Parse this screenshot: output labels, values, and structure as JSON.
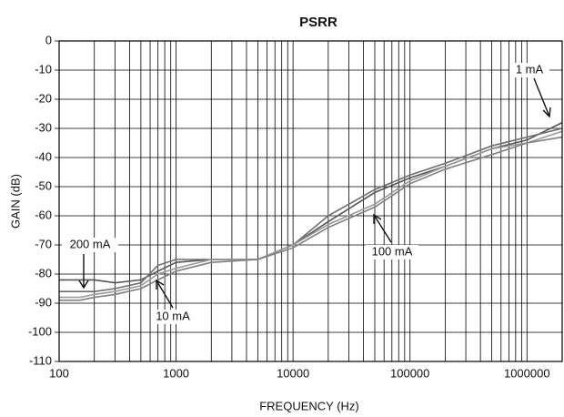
{
  "chart_data": {
    "type": "line",
    "title": "PSRR",
    "x_label": "FREQUENCY (Hz)",
    "y_label": "GAIN (dB)",
    "xscale": "log",
    "grid": true,
    "xlim": [
      100,
      2000000
    ],
    "ylim": [
      -110,
      0
    ],
    "xticks": [
      100,
      1000,
      10000,
      100000,
      1000000
    ],
    "xminorticks": [
      200,
      300,
      400,
      500,
      600,
      700,
      800,
      900,
      2000,
      3000,
      4000,
      5000,
      6000,
      7000,
      8000,
      9000,
      20000,
      30000,
      40000,
      50000,
      60000,
      70000,
      80000,
      90000,
      200000,
      300000,
      400000,
      500000,
      600000,
      700000,
      800000,
      900000,
      2000000
    ],
    "yticks": [
      0,
      -10,
      -20,
      -30,
      -40,
      -50,
      -60,
      -70,
      -80,
      -90,
      -100,
      -110
    ],
    "x": [
      100,
      150,
      200,
      300,
      500,
      700,
      1000,
      2000,
      5000,
      10000,
      20000,
      50000,
      100000,
      200000,
      500000,
      1000000,
      2000000
    ],
    "series": [
      {
        "name": "1 mA",
        "color": "#555555",
        "values": [
          -82,
          -82,
          -82,
          -83,
          -82,
          -79,
          -76,
          -75,
          -75,
          -70,
          -62,
          -52,
          -47,
          -43,
          -37,
          -34,
          -28
        ]
      },
      {
        "name": "10 mA",
        "color": "#6e6e6e",
        "values": [
          -86,
          -86,
          -86,
          -85,
          -83,
          -77,
          -75,
          -75,
          -75,
          -70,
          -60,
          -51,
          -46,
          -42,
          -36,
          -33,
          -30
        ]
      },
      {
        "name": "100 mA",
        "color": "#999999",
        "values": [
          -88,
          -88,
          -87,
          -86,
          -84,
          -80,
          -78,
          -75,
          -75,
          -70,
          -63,
          -56,
          -48,
          -43,
          -37,
          -35,
          -31
        ]
      },
      {
        "name": "200 mA",
        "color": "#808080",
        "values": [
          -89,
          -89,
          -88,
          -87,
          -85,
          -82,
          -79,
          -76,
          -75,
          -71,
          -64,
          -57,
          -49,
          -44,
          -39,
          -35,
          -33
        ]
      }
    ]
  }
}
